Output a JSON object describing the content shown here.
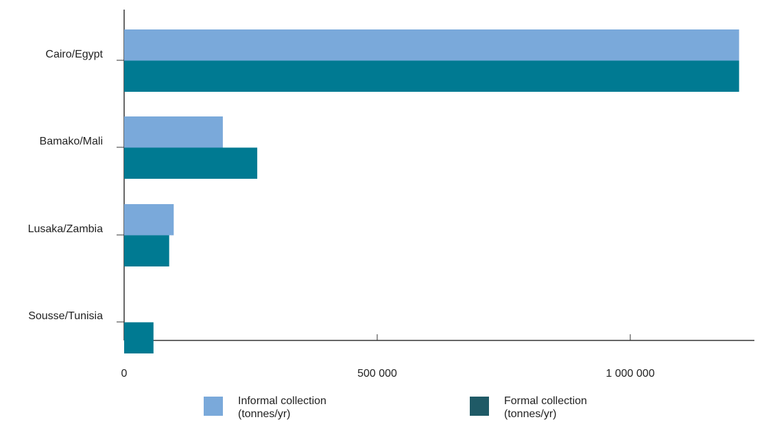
{
  "chart_data": {
    "type": "bar",
    "orientation": "horizontal",
    "categories": [
      "Cairo/Egypt",
      "Bamako/Mali",
      "Lusaka/Zambia",
      "Sousse/Tunisia"
    ],
    "series": [
      {
        "name_line1": "Informal collection",
        "name_line2": "(tonnes/yr)",
        "color": "#7aa9da",
        "values": [
          1215000,
          195000,
          98000,
          0
        ]
      },
      {
        "name_line1": "Formal collection",
        "name_line2": "(tonnes/yr)",
        "color": "#007a92",
        "values": [
          1215000,
          263000,
          89000,
          58000
        ]
      }
    ],
    "x_ticks": [
      {
        "value": 0,
        "label": "0"
      },
      {
        "value": 500000,
        "label": "500 000"
      },
      {
        "value": 1000000,
        "label": "1 000 000"
      }
    ],
    "xlim": [
      0,
      1250000
    ],
    "legend_swatch_colors": [
      "#7aa9da",
      "#1f5a66"
    ],
    "legend_position": "bottom",
    "grid": false
  }
}
